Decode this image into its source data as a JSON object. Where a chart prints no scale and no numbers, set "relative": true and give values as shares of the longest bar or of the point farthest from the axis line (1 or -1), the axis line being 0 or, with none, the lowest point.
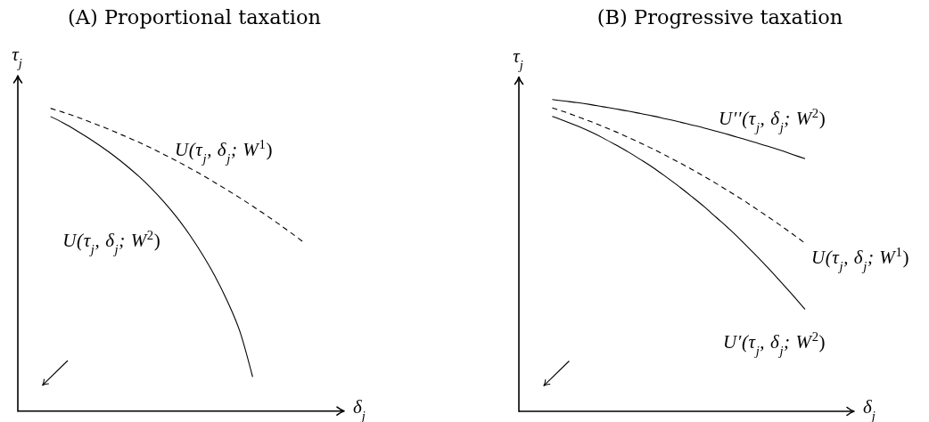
{
  "chart_data": [
    {
      "type": "line",
      "title": "(A) Proportional taxation",
      "xlabel": "δ$_{j}$",
      "ylabel": "τ$_{j}$",
      "relative": true,
      "categories": [
        null,
        null,
        null,
        null,
        null,
        null,
        null,
        null,
        null,
        null,
        null,
        null,
        null,
        null,
        null,
        null,
        null,
        null,
        null,
        null,
        null
      ],
      "series": [
        {
          "name": "U(τ$_{j}$, δ$_{j}$; W$^{1}$)",
          "color": "#000000",
          "line_style": "dashed",
          "values": [
            1.0,
            0.987,
            0.973,
            0.957,
            0.941,
            0.924,
            0.906,
            0.888,
            0.868,
            0.847,
            0.826,
            0.803,
            0.78,
            0.755,
            0.73,
            0.704,
            0.677,
            0.649,
            0.62,
            0.59,
            0.559
          ]
        },
        {
          "name": "U(τ$_{j}$, δ$_{j}$; W$^{2}$)",
          "color": "#000000",
          "line_style": "solid",
          "values": [
            0.973,
            0.952,
            0.928,
            0.902,
            0.874,
            0.844,
            0.811,
            0.775,
            0.735,
            0.69,
            0.64,
            0.583,
            0.519,
            0.447,
            0.363,
            0.262,
            0.113,
            null,
            null,
            null,
            null
          ]
        }
      ]
    },
    {
      "type": "line",
      "title": "(B) Progressive taxation",
      "xlabel": "δ$_{j}$",
      "ylabel": "τ$_{j}$",
      "relative": true,
      "categories": [
        null,
        null,
        null,
        null,
        null,
        null,
        null,
        null,
        null,
        null,
        null,
        null,
        null,
        null,
        null,
        null,
        null,
        null,
        null,
        null,
        null
      ],
      "series": [
        {
          "name": "U′′(τ$_{j}$, δ$_{j}$; W$^{2}$)",
          "color": "#000000",
          "line_style": "solid",
          "values": [
            1.0,
            0.995,
            0.99,
            0.984,
            0.977,
            0.97,
            0.963,
            0.955,
            0.947,
            0.938,
            0.929,
            0.919,
            0.909,
            0.898,
            0.887,
            0.875,
            0.863,
            0.851,
            0.838,
            0.824,
            0.81
          ]
        },
        {
          "name": "U(τ$_{j}$, δ$_{j}$; W$^{1}$)",
          "color": "#000000",
          "line_style": "dashed",
          "values": [
            0.973,
            0.96,
            0.945,
            0.93,
            0.914,
            0.897,
            0.879,
            0.86,
            0.841,
            0.82,
            0.799,
            0.777,
            0.754,
            0.73,
            0.705,
            0.68,
            0.653,
            0.626,
            0.598,
            0.569,
            0.539
          ]
        },
        {
          "name": "U′(τ$_{j}$, δ$_{j}$; W$^{2}$)",
          "color": "#000000",
          "line_style": "solid",
          "values": [
            0.946,
            0.931,
            0.915,
            0.897,
            0.877,
            0.855,
            0.832,
            0.807,
            0.781,
            0.752,
            0.722,
            0.69,
            0.657,
            0.621,
            0.585,
            0.546,
            0.505,
            0.463,
            0.419,
            0.374,
            0.327
          ]
        }
      ]
    }
  ]
}
